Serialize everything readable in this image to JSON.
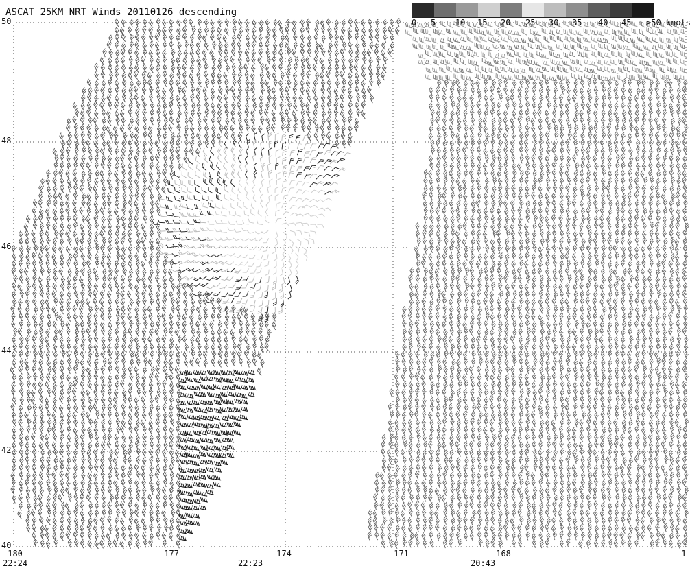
{
  "title": "ASCAT 25KM NRT Winds 20110126 descending",
  "colorbar": {
    "labels": [
      "0",
      "5",
      "10",
      "15",
      "20",
      "25",
      "30",
      "35",
      "40",
      "45",
      ">50 knots"
    ],
    "colors": [
      "#2a2a2a",
      "#6e6e6e",
      "#9a9a9a",
      "#cfcfcf",
      "#7d7d7d",
      "#e6e6e6",
      "#bdbdbd",
      "#8f8f8f",
      "#5e5e5e",
      "#3c3c3c",
      "#1a1a1a"
    ]
  },
  "map": {
    "lat_labels": [
      "50",
      "48",
      "46",
      "44",
      "42",
      "40"
    ],
    "lon_labels": [
      "-180",
      "-177",
      "-174",
      "-171",
      "-168",
      "-1"
    ],
    "time_labels": [
      "22:24",
      "22:23",
      "20:43"
    ],
    "lat_range": [
      40,
      50
    ],
    "lon_range": [
      -180,
      -165
    ],
    "gridlines": true
  },
  "swaths": [
    {
      "name": "swath-west",
      "time": "22:23"
    },
    {
      "name": "swath-east",
      "time": "20:43"
    }
  ]
}
